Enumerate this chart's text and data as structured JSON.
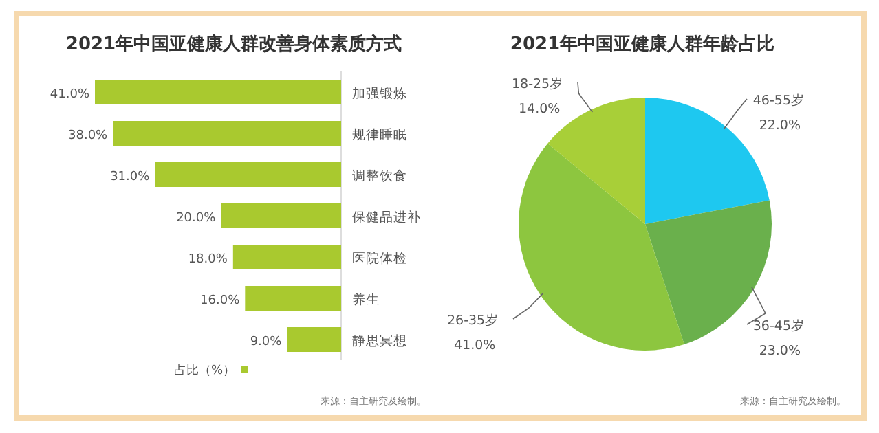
{
  "chart_data": [
    {
      "type": "bar",
      "orientation": "horizontal",
      "title": "2021年中国亚健康人群改善身体素质方式",
      "categories": [
        "加强锻炼",
        "规律睡眠",
        "调整饮食",
        "保健品进补",
        "医院体检",
        "养生",
        "静思冥想"
      ],
      "series": [
        {
          "name": "占比（%）",
          "color": "#a9c92f",
          "values": [
            41.0,
            38.0,
            31.0,
            20.0,
            18.0,
            16.0,
            9.0
          ],
          "value_labels": [
            "41.0%",
            "38.0%",
            "31.0%",
            "20.0%",
            "18.0%",
            "16.0%",
            "9.0%"
          ]
        }
      ],
      "legend": "bottom",
      "annotations": [
        "来源：自主研究及绘制。"
      ]
    },
    {
      "type": "pie",
      "title": "2021年中国亚健康人群年龄占比",
      "categories": [
        "46-55岁",
        "36-45岁",
        "26-35岁",
        "18-25岁"
      ],
      "values": [
        22.0,
        23.0,
        41.0,
        14.0
      ],
      "colors": [
        "#1ec8f0",
        "#6ab04c",
        "#8dc63f",
        "#a8cf38"
      ],
      "value_labels": [
        "22.0%",
        "23.0%",
        "41.0%",
        "14.0%"
      ],
      "annotations": [
        "来源：自主研究及绘制。"
      ]
    }
  ]
}
